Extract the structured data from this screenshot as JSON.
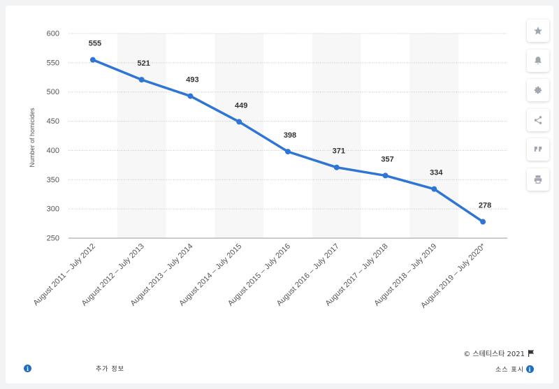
{
  "chart_data": {
    "type": "line",
    "categories": [
      "August 2011 – July 2012",
      "August 2012 – July 2013",
      "August 2013 – July 2014",
      "August 2014 – July 2015",
      "August 2015 – July 2016",
      "August 2016 – July 2017",
      "August 2017 – July 2018",
      "August 2018 – July 2019",
      "August 2019 – July 2020*"
    ],
    "series": [
      {
        "values": [
          555,
          521,
          493,
          449,
          398,
          371,
          357,
          334,
          278
        ]
      }
    ],
    "ylabel": "Number of homicides",
    "yticks": [
      250,
      300,
      350,
      400,
      450,
      500,
      550,
      600
    ],
    "ylim": [
      250,
      600
    ],
    "grid": true,
    "line_color": "#2f75d6"
  },
  "sidebar": {
    "buttons": [
      "star-icon",
      "bell-icon",
      "gear-icon",
      "share-icon",
      "quote-icon",
      "print-icon"
    ]
  },
  "footer": {
    "more_info": "추가 정보",
    "copyright": "© 스테티스타 2021",
    "source": "소스 표시"
  }
}
